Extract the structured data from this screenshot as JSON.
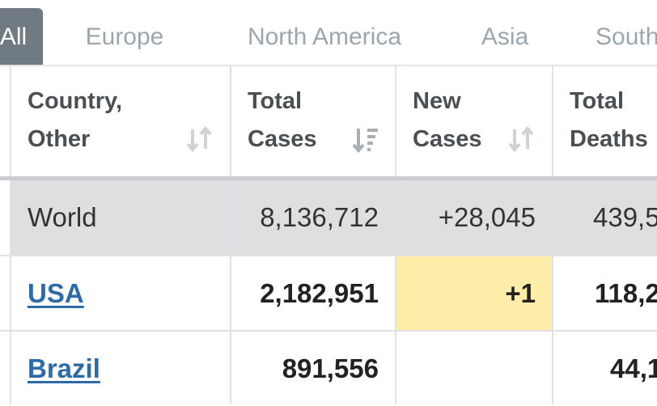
{
  "tabs": [
    {
      "label": "All",
      "active": true
    },
    {
      "label": "Europe",
      "active": false
    },
    {
      "label": "North America",
      "active": false
    },
    {
      "label": "Asia",
      "active": false
    },
    {
      "label": "South",
      "active": false
    }
  ],
  "table": {
    "headers": [
      {
        "line1": "Country,",
        "line2": "Other",
        "sort_icon": "sort-arrows-icon"
      },
      {
        "line1": "Total",
        "line2": "Cases",
        "sort_icon": "sort-descending-icon"
      },
      {
        "line1": "New",
        "line2": "Cases",
        "sort_icon": "sort-arrows-icon"
      },
      {
        "line1": "Total",
        "line2": "Deaths",
        "sort_icon": "sort-arrows-icon"
      }
    ],
    "rows": [
      {
        "country": "World",
        "total_cases": "8,136,712",
        "new_cases": "+28,045",
        "total_deaths": "439,5"
      },
      {
        "country": "USA",
        "total_cases": "2,182,951",
        "new_cases": "+1",
        "total_deaths": "118,2"
      },
      {
        "country": "Brazil",
        "total_cases": "891,556",
        "new_cases": "",
        "total_deaths": "44,1"
      }
    ]
  },
  "colors": {
    "active_tab": "#707a83",
    "world_row": "#dfdfdf",
    "new_cases_highlight": "#ffeeaa",
    "link": "#2d6ba8"
  }
}
